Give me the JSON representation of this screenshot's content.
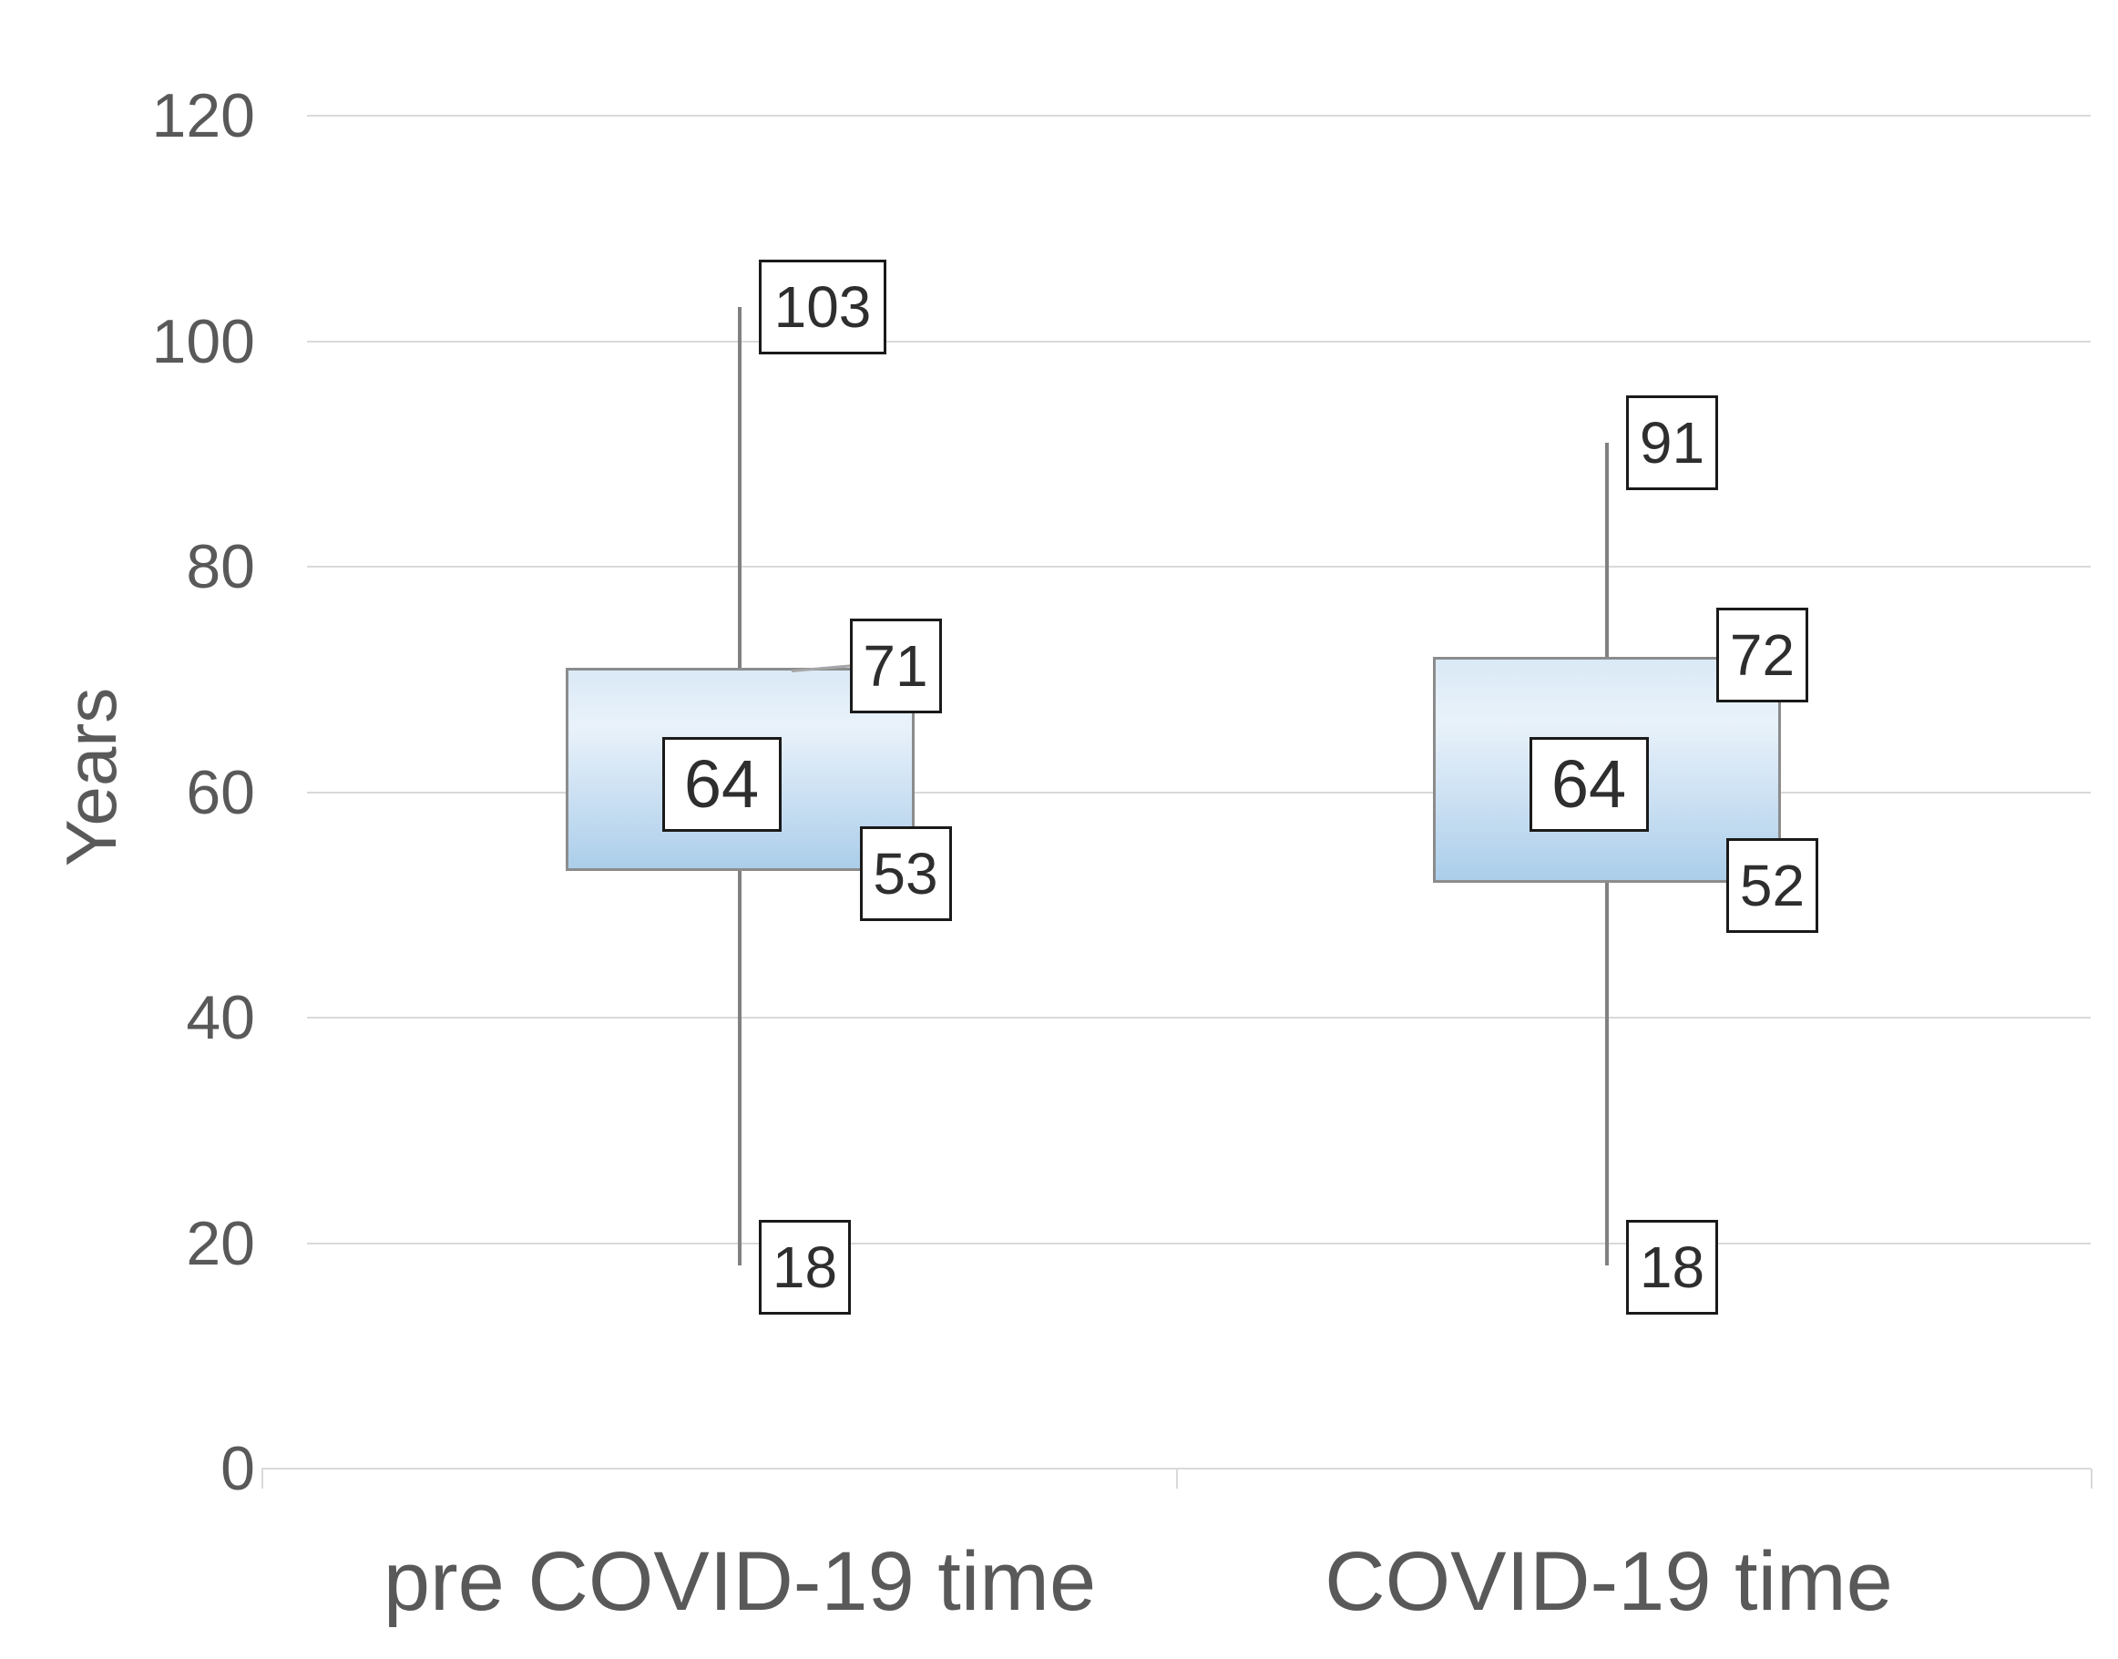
{
  "chart": {
    "ylabel": "Years",
    "categories": [
      "pre COVID-19 time",
      "COVID-19 time"
    ]
  },
  "chart_data": {
    "type": "boxplot",
    "title": "",
    "xlabel": "",
    "ylabel": "Years",
    "ylim": [
      0,
      120
    ],
    "y_ticks": [
      0,
      20,
      40,
      60,
      80,
      100,
      120
    ],
    "grid": true,
    "legend": false,
    "categories": [
      "pre COVID-19 time",
      "COVID-19 time"
    ],
    "series": [
      {
        "name": "pre COVID-19 time",
        "min": 18,
        "q1": 53,
        "median": 64,
        "q3": 71,
        "max": 103
      },
      {
        "name": "COVID-19 time",
        "min": 18,
        "q1": 52,
        "median": 64,
        "q3": 72,
        "max": 91
      }
    ],
    "data_labels_shown": [
      "max",
      "q3",
      "median",
      "q1",
      "min"
    ],
    "colors": {
      "box_fill_top": "#dae9f6",
      "box_fill_bottom": "#abceea",
      "box_border": "#8c8c8c",
      "whisker": "#808080",
      "gridline": "#d9d9d9",
      "axis_text": "#595959",
      "label_border": "#1a1a1a",
      "label_text": "#2e2e2e"
    }
  }
}
